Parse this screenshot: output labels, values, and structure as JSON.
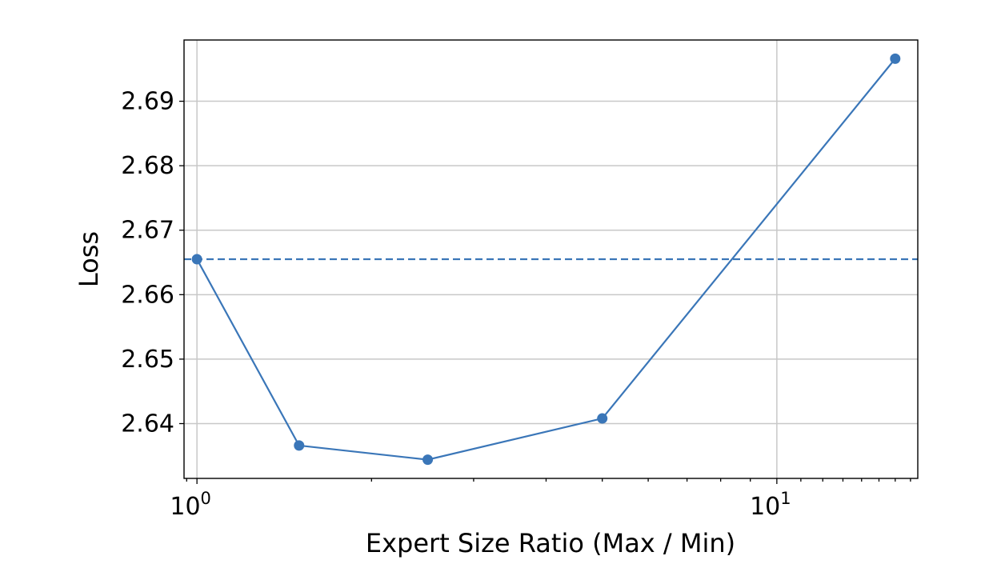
{
  "chart_data": {
    "type": "line",
    "xlabel": "Expert Size Ratio (Max / Min)",
    "ylabel": "Loss",
    "xscale": "log",
    "xlim": [
      0.95,
      17.5
    ],
    "ylim": [
      2.6315,
      2.6995
    ],
    "grid": true,
    "x_ticks": [
      {
        "value": 1,
        "base": "10",
        "exp": "0"
      },
      {
        "value": 10,
        "base": "10",
        "exp": "1"
      }
    ],
    "y_ticks": [
      {
        "value": 2.64,
        "label": "2.64"
      },
      {
        "value": 2.65,
        "label": "2.65"
      },
      {
        "value": 2.66,
        "label": "2.66"
      },
      {
        "value": 2.67,
        "label": "2.67"
      },
      {
        "value": 2.68,
        "label": "2.68"
      },
      {
        "value": 2.69,
        "label": "2.69"
      }
    ],
    "x": [
      1.0,
      1.5,
      2.5,
      5.0,
      16.0
    ],
    "series": [
      {
        "values": [
          2.6655,
          2.6366,
          2.6344,
          2.6408,
          2.6966
        ],
        "color": "#3a76b8"
      }
    ],
    "reference_line": {
      "y": 2.6655,
      "style": "dashed",
      "color": "#3a76b8"
    }
  }
}
